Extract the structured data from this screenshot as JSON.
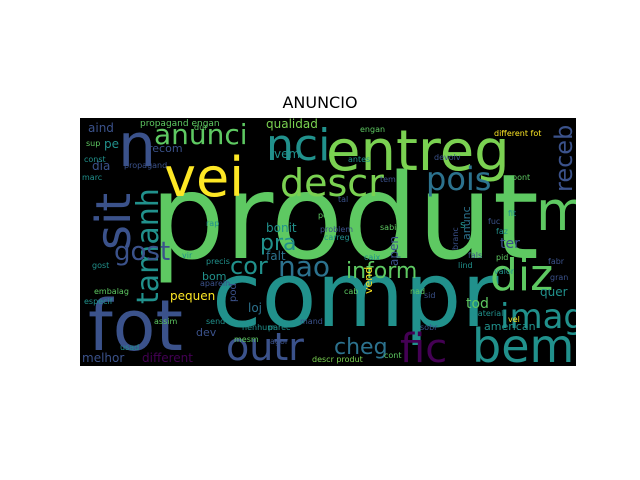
{
  "figure": {
    "title": "ANUNCIO"
  },
  "wordcloud": {
    "background": "#000000",
    "palette": [
      "#5ec962",
      "#21918c",
      "#3b528b",
      "#440154",
      "#fde725",
      "#2c728e",
      "#7ad151"
    ],
    "words": [
      {
        "text": "produt",
        "color": "#5ec962"
      },
      {
        "text": "compr",
        "color": "#21918c"
      },
      {
        "text": "fot",
        "color": "#3b528b"
      },
      {
        "text": "entreg",
        "color": "#7ad151"
      },
      {
        "text": "vei",
        "color": "#fde725"
      },
      {
        "text": "bem",
        "color": "#21918c"
      },
      {
        "text": "n",
        "color": "#3b528b"
      },
      {
        "text": "anunci",
        "color": "#5ec962"
      },
      {
        "text": "nci",
        "color": "#21918c"
      },
      {
        "text": "descr",
        "color": "#7ad151"
      },
      {
        "text": "pois",
        "color": "#2c728e"
      },
      {
        "text": "sit",
        "color": "#3b528b"
      },
      {
        "text": "m",
        "color": "#5ec962"
      },
      {
        "text": "tamanh",
        "color": "#21918c"
      },
      {
        "text": "receb",
        "color": "#3b528b"
      },
      {
        "text": "diz",
        "color": "#5ec962"
      },
      {
        "text": "imag",
        "color": "#21918c"
      },
      {
        "text": "outr",
        "color": "#3b528b"
      },
      {
        "text": "fic",
        "color": "#440154"
      },
      {
        "text": "cheg",
        "color": "#2c728e"
      },
      {
        "text": "gost",
        "color": "#3b528b"
      },
      {
        "text": "cor",
        "color": "#21918c"
      },
      {
        "text": "nao",
        "color": "#2c728e"
      },
      {
        "text": "inform",
        "color": "#5ec962"
      },
      {
        "text": "pra",
        "color": "#21918c"
      },
      {
        "text": "aind",
        "color": "#3b528b"
      },
      {
        "text": "qualidad",
        "color": "#7ad151"
      },
      {
        "text": "bonit",
        "color": "#21918c"
      },
      {
        "text": "falt",
        "color": "#2c728e"
      },
      {
        "text": "recom",
        "color": "#3b528b"
      },
      {
        "text": "pequen",
        "color": "#fde725"
      },
      {
        "text": "bom",
        "color": "#21918c"
      },
      {
        "text": "dia",
        "color": "#3b528b"
      },
      {
        "text": "pe",
        "color": "#21918c"
      },
      {
        "text": "dev",
        "color": "#3b528b"
      },
      {
        "text": "loj",
        "color": "#2c728e"
      },
      {
        "text": "pod",
        "color": "#3b528b"
      },
      {
        "text": "vend",
        "color": "#fde725"
      },
      {
        "text": "apen",
        "color": "#3b528b"
      },
      {
        "text": "s",
        "color": "#21918c"
      },
      {
        "text": "anunc",
        "color": "#2c728e"
      },
      {
        "text": "ter",
        "color": "#3b528b"
      },
      {
        "text": "quer",
        "color": "#21918c"
      },
      {
        "text": "tod",
        "color": "#5ec962"
      },
      {
        "text": "american",
        "color": "#21918c"
      },
      {
        "text": "melhor",
        "color": "#3b528b"
      },
      {
        "text": "different",
        "color": "#440154"
      },
      {
        "text": "vem",
        "color": "#21918c"
      },
      {
        "text": "sobr",
        "color": "#3b528b"
      },
      {
        "text": "propagand engan",
        "color": "#5ec962"
      },
      {
        "text": "descr produt",
        "color": "#7ad151"
      },
      {
        "text": "different fot",
        "color": "#fde725"
      },
      {
        "text": "nenhum",
        "color": "#21918c"
      },
      {
        "text": "assim",
        "color": "#5ec962"
      },
      {
        "text": "precis",
        "color": "#21918c"
      },
      {
        "text": "problem",
        "color": "#3b528b"
      },
      {
        "text": "marc",
        "color": "#21918c"
      },
      {
        "text": "sup",
        "color": "#5ec962"
      },
      {
        "text": "const",
        "color": "#21918c"
      },
      {
        "text": "propagand",
        "color": "#3b528b"
      },
      {
        "text": "especif",
        "color": "#21918c"
      },
      {
        "text": "engan",
        "color": "#5ec962"
      },
      {
        "text": "antes",
        "color": "#21918c"
      },
      {
        "text": "devolv",
        "color": "#3b528b"
      },
      {
        "text": "lind",
        "color": "#21918c"
      },
      {
        "text": "vel",
        "color": "#fde725"
      },
      {
        "text": "caix",
        "color": "#21918c"
      },
      {
        "text": "cab",
        "color": "#5ec962"
      },
      {
        "text": "aparelh",
        "color": "#3b528b"
      },
      {
        "text": "valor",
        "color": "#21918c"
      },
      {
        "text": "embalag",
        "color": "#5ec962"
      },
      {
        "text": "fals",
        "color": "#3b528b"
      },
      {
        "text": "usad",
        "color": "#21918c"
      },
      {
        "text": "mand",
        "color": "#3b528b"
      },
      {
        "text": "ped",
        "color": "#5ec962"
      },
      {
        "text": "carreg",
        "color": "#21918c"
      },
      {
        "text": "fuc",
        "color": "#3b528b"
      },
      {
        "text": "mesm",
        "color": "#5ec962"
      },
      {
        "text": "material",
        "color": "#21918c"
      },
      {
        "text": "sid",
        "color": "#3b528b"
      },
      {
        "text": "send",
        "color": "#21918c"
      },
      {
        "text": "cont",
        "color": "#5ec962"
      },
      {
        "text": "agor",
        "color": "#3b528b"
      },
      {
        "text": "fit",
        "color": "#21918c"
      },
      {
        "text": "pont",
        "color": "#5ec962"
      },
      {
        "text": "branc",
        "color": "#3b528b"
      },
      {
        "text": "gost",
        "color": "#21918c"
      },
      {
        "text": "nad",
        "color": "#5ec962"
      },
      {
        "text": "tem",
        "color": "#3b528b"
      },
      {
        "text": "faz",
        "color": "#21918c"
      },
      {
        "text": "pid",
        "color": "#5ec962"
      },
      {
        "text": "gran",
        "color": "#3b528b"
      },
      {
        "text": "parec",
        "color": "#21918c"
      },
      {
        "text": "sabi",
        "color": "#5ec962"
      },
      {
        "text": "fabr",
        "color": "#3b528b"
      },
      {
        "text": "rap",
        "color": "#21918c"
      },
      {
        "text": "dur",
        "color": "#5ec962"
      },
      {
        "text": "tal",
        "color": "#3b528b"
      },
      {
        "text": "vir",
        "color": "#21918c"
      }
    ]
  }
}
